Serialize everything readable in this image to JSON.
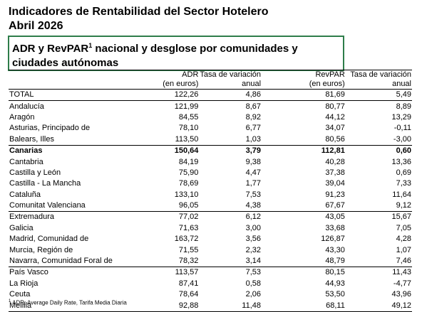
{
  "header": {
    "title": "Indicadores de Rentabilidad del Sector Hotelero",
    "date": "Abril 2026"
  },
  "subtitle": {
    "before": "ADR y RevPAR",
    "sup": "1",
    "after": " nacional y desglose por comunidades y ciudades autónomas"
  },
  "table": {
    "columns": [
      [
        "ADR",
        "(en euros)"
      ],
      [
        "Tasa de variación",
        "anual"
      ],
      [
        "RevPAR",
        "(en euros)"
      ],
      [
        "Tasa de variación",
        "anual"
      ]
    ],
    "rows": [
      [
        "TOTAL",
        "122,26",
        "4,86",
        "81,69",
        "5,49"
      ],
      [
        "Andalucía",
        "121,99",
        "8,67",
        "80,77",
        "8,89"
      ],
      [
        "Aragón",
        "84,55",
        "8,92",
        "44,12",
        "13,29"
      ],
      [
        "Asturias, Principado de",
        "78,10",
        "6,77",
        "34,07",
        "-0,11"
      ],
      [
        "Balears, Illes",
        "113,50",
        "1,03",
        "80,56",
        "-3,00"
      ],
      [
        "Canarias",
        "150,64",
        "3,79",
        "112,81",
        "0,60"
      ],
      [
        "Cantabria",
        "84,19",
        "9,38",
        "40,28",
        "13,36"
      ],
      [
        "Castilla y León",
        "75,90",
        "4,47",
        "37,38",
        "0,69"
      ],
      [
        "Castilla - La Mancha",
        "78,69",
        "1,77",
        "39,04",
        "7,33"
      ],
      [
        "Cataluña",
        "133,10",
        "7,53",
        "91,23",
        "11,64"
      ],
      [
        "Comunitat Valenciana",
        "96,05",
        "4,38",
        "67,67",
        "9,12"
      ],
      [
        "Extremadura",
        "77,02",
        "6,12",
        "43,05",
        "15,67"
      ],
      [
        "Galicia",
        "71,63",
        "3,00",
        "33,68",
        "7,05"
      ],
      [
        "Madrid, Comunidad de",
        "163,72",
        "3,56",
        "126,87",
        "4,28"
      ],
      [
        "Murcia, Región de",
        "71,55",
        "2,32",
        "43,30",
        "1,07"
      ],
      [
        "Navarra, Comunidad Foral de",
        "78,32",
        "3,14",
        "48,79",
        "7,46"
      ],
      [
        "País Vasco",
        "113,57",
        "7,53",
        "80,15",
        "11,43"
      ],
      [
        "La Rioja",
        "87,41",
        "0,58",
        "44,93",
        "-4,77"
      ],
      [
        "Ceuta",
        "78,64",
        "2,06",
        "53,50",
        "43,96"
      ],
      [
        "Melilla",
        "92,88",
        "11,48",
        "68,11",
        "49,12"
      ]
    ]
  },
  "footnote": {
    "sup": "1",
    "text": "ADR: Average Daily Rate, Tarifa Media Diaria"
  }
}
